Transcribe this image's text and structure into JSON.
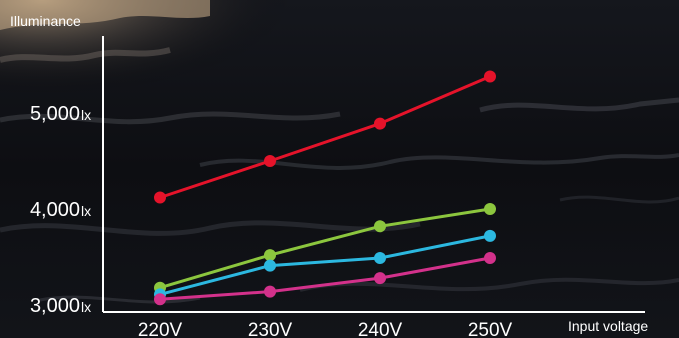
{
  "chart_data": {
    "type": "line",
    "ylabel": "Illuminance",
    "xlabel": "Input voltage",
    "categories": [
      "220V",
      "230V",
      "240V",
      "250V"
    ],
    "ylim": [
      3000,
      5600
    ],
    "y_ticks": [
      {
        "value": 3000,
        "label": "3,000",
        "unit": "lx"
      },
      {
        "value": 4000,
        "label": "4,000",
        "unit": "lx"
      },
      {
        "value": 5000,
        "label": "5,000",
        "unit": "lx"
      }
    ],
    "grid": false,
    "legend": "none",
    "series": [
      {
        "color": "#e5132a",
        "values": [
          4120,
          4500,
          4890,
          5380
        ]
      },
      {
        "color": "#8cc63e",
        "values": [
          3180,
          3520,
          3820,
          4000
        ]
      },
      {
        "color": "#2cb8e0",
        "values": [
          3110,
          3410,
          3490,
          3720
        ]
      },
      {
        "color": "#d3318b",
        "values": [
          3060,
          3140,
          3280,
          3490
        ]
      }
    ]
  }
}
